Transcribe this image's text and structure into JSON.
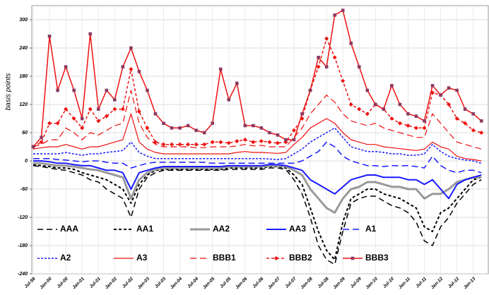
{
  "chart_data": {
    "type": "line",
    "y_label": "basis points",
    "categories": [
      "Jul-99",
      null,
      "Jan-00",
      null,
      "Jul-00",
      null,
      "Jan-01",
      null,
      "Jul-01",
      null,
      "Jan-02",
      null,
      "Jul-02",
      null,
      "Jan-03",
      null,
      "Jul-03",
      null,
      "Jan-04",
      null,
      "Jul-04",
      null,
      "Jan-05",
      null,
      "Jul-05",
      null,
      "Jan-06",
      null,
      "Jul-06",
      null,
      "Jan-07",
      null,
      "Jul-07",
      null,
      "Jan-08",
      null,
      "Jul-08",
      null,
      "Jan-09",
      null,
      "Jul-09",
      null,
      "Jan-10",
      null,
      "Jul-10",
      null,
      "Jan-11",
      null,
      "Jul-11",
      null,
      "Jan-12",
      null,
      "Jul-12",
      null,
      "Jan-13",
      null
    ],
    "ylim": [
      -240,
      330
    ],
    "yticks": [
      -240,
      -180,
      -120,
      -60,
      0,
      60,
      120,
      180,
      240,
      300
    ],
    "grid": true,
    "legend": "lower left",
    "series": [
      {
        "name": "AAA",
        "color": "#000000",
        "dash": "8,5",
        "width": 1.5,
        "values": [
          -10,
          -12,
          -15,
          -18,
          -20,
          -25,
          -30,
          -40,
          -45,
          -60,
          -70,
          -80,
          -120,
          -60,
          -35,
          -25,
          -20,
          -20,
          -20,
          -20,
          -20,
          -20,
          -20,
          -20,
          -18,
          -18,
          -18,
          -18,
          -18,
          -15,
          -15,
          -18,
          -40,
          -70,
          -120,
          -180,
          -210,
          -220,
          -150,
          -90,
          -80,
          -75,
          -75,
          -85,
          -95,
          -100,
          -110,
          -130,
          -170,
          -180,
          -140,
          -120,
          -90,
          -70,
          -50,
          -40
        ]
      },
      {
        "name": "AA1",
        "color": "#000000",
        "dash": "4,3",
        "width": 2,
        "values": [
          -8,
          -10,
          -12,
          -15,
          -15,
          -18,
          -25,
          -30,
          -35,
          -40,
          -50,
          -60,
          -90,
          -50,
          -30,
          -20,
          -18,
          -18,
          -18,
          -18,
          -18,
          -18,
          -18,
          -18,
          -15,
          -15,
          -15,
          -15,
          -15,
          -12,
          -12,
          -15,
          -30,
          -50,
          -100,
          -150,
          -190,
          -210,
          -130,
          -80,
          -70,
          -60,
          -60,
          -70,
          -75,
          -80,
          -90,
          -100,
          -140,
          -150,
          -110,
          -100,
          -80,
          -60,
          -40,
          -35
        ]
      },
      {
        "name": "AA2",
        "color": "#999999",
        "dash": "none",
        "width": 3,
        "values": [
          -5,
          -5,
          -8,
          -10,
          -10,
          -12,
          -15,
          -18,
          -20,
          -25,
          -30,
          -35,
          -80,
          -40,
          -25,
          -18,
          -15,
          -15,
          -15,
          -15,
          -15,
          -15,
          -15,
          -15,
          -12,
          -12,
          -12,
          -12,
          -12,
          -10,
          -10,
          -12,
          -20,
          -30,
          -60,
          -80,
          -100,
          -110,
          -80,
          -60,
          -55,
          -45,
          -45,
          -50,
          -55,
          -55,
          -60,
          -60,
          -80,
          -70,
          -70,
          -60,
          -45,
          -40,
          -35,
          -35
        ]
      },
      {
        "name": "AA3",
        "color": "#1a1aff",
        "dash": "none",
        "width": 2,
        "values": [
          0,
          0,
          -2,
          -5,
          -5,
          -8,
          -10,
          -10,
          -15,
          -20,
          -20,
          -25,
          -60,
          -25,
          -20,
          -15,
          -12,
          -12,
          -12,
          -12,
          -12,
          -12,
          -12,
          -12,
          -10,
          -10,
          -10,
          -10,
          -10,
          -8,
          -8,
          -10,
          -15,
          -20,
          -40,
          -50,
          -60,
          -70,
          -55,
          -40,
          -35,
          -30,
          -30,
          -35,
          -35,
          -35,
          -40,
          -40,
          -50,
          -40,
          -60,
          -80,
          -50,
          -40,
          -35,
          -30
        ]
      },
      {
        "name": "A1",
        "color": "#1a1aff",
        "dash": "9,5",
        "width": 1.5,
        "values": [
          5,
          5,
          5,
          3,
          2,
          0,
          -2,
          0,
          0,
          -3,
          -5,
          -5,
          -15,
          -10,
          -5,
          -3,
          -3,
          -3,
          -3,
          -3,
          -3,
          -3,
          -5,
          -5,
          -5,
          -5,
          -5,
          -5,
          -5,
          -5,
          -5,
          -5,
          -5,
          0,
          10,
          20,
          40,
          30,
          10,
          0,
          -5,
          -10,
          -10,
          -12,
          -10,
          -10,
          -10,
          -12,
          -15,
          10,
          -10,
          -20,
          -25,
          -20,
          -20,
          -25
        ]
      },
      {
        "name": "A2",
        "color": "#1a1aff",
        "dash": "3,2",
        "width": 1.5,
        "values": [
          15,
          15,
          15,
          15,
          18,
          15,
          12,
          15,
          15,
          18,
          20,
          22,
          40,
          18,
          10,
          5,
          5,
          5,
          5,
          5,
          5,
          5,
          5,
          5,
          5,
          5,
          5,
          5,
          5,
          4,
          3,
          5,
          15,
          25,
          40,
          50,
          60,
          70,
          50,
          30,
          25,
          20,
          20,
          18,
          15,
          15,
          12,
          12,
          15,
          35,
          20,
          10,
          5,
          2,
          0,
          -5
        ]
      },
      {
        "name": "A3",
        "color": "#ee1111",
        "dash": "none",
        "width": 1.2,
        "values": [
          25,
          28,
          30,
          30,
          35,
          30,
          25,
          30,
          30,
          35,
          40,
          45,
          100,
          40,
          25,
          18,
          15,
          15,
          15,
          15,
          15,
          15,
          15,
          15,
          15,
          18,
          20,
          18,
          18,
          17,
          16,
          18,
          35,
          50,
          70,
          80,
          90,
          80,
          60,
          45,
          40,
          35,
          35,
          30,
          28,
          26,
          24,
          22,
          25,
          40,
          30,
          25,
          10,
          5,
          3,
          0
        ]
      },
      {
        "name": "BBB1",
        "color": "#ee1111",
        "dash": "9,5",
        "width": 1.2,
        "values": [
          30,
          35,
          45,
          45,
          70,
          60,
          45,
          60,
          55,
          65,
          75,
          80,
          150,
          80,
          50,
          35,
          30,
          30,
          30,
          30,
          28,
          28,
          30,
          30,
          30,
          32,
          35,
          32,
          33,
          30,
          30,
          30,
          50,
          70,
          100,
          120,
          140,
          125,
          100,
          85,
          80,
          75,
          80,
          70,
          65,
          60,
          55,
          50,
          50,
          100,
          80,
          60,
          40,
          35,
          30,
          25
        ]
      },
      {
        "name": "BBB2",
        "color": "#ee1111",
        "dash": "4,3",
        "width": 1.5,
        "marker": "diamond",
        "values": [
          30,
          40,
          80,
          80,
          110,
          90,
          70,
          110,
          85,
          95,
          110,
          110,
          195,
          105,
          70,
          40,
          35,
          35,
          35,
          35,
          35,
          35,
          40,
          40,
          38,
          42,
          45,
          40,
          42,
          40,
          38,
          40,
          65,
          90,
          150,
          200,
          260,
          220,
          170,
          120,
          110,
          100,
          120,
          110,
          90,
          80,
          75,
          70,
          70,
          145,
          140,
          120,
          90,
          80,
          65,
          60
        ]
      },
      {
        "name": "BBB3",
        "color": "#ee1111",
        "dash": "none",
        "width": 1.5,
        "marker": "square",
        "marker_color": "#8b3a62",
        "values": [
          30,
          50,
          265,
          150,
          200,
          150,
          90,
          270,
          110,
          150,
          130,
          200,
          240,
          190,
          150,
          100,
          80,
          70,
          70,
          75,
          65,
          60,
          80,
          195,
          130,
          165,
          75,
          75,
          70,
          60,
          55,
          45,
          45,
          100,
          150,
          220,
          200,
          310,
          320,
          250,
          200,
          150,
          120,
          110,
          160,
          120,
          100,
          95,
          85,
          160,
          140,
          155,
          150,
          110,
          100,
          85
        ]
      }
    ]
  }
}
